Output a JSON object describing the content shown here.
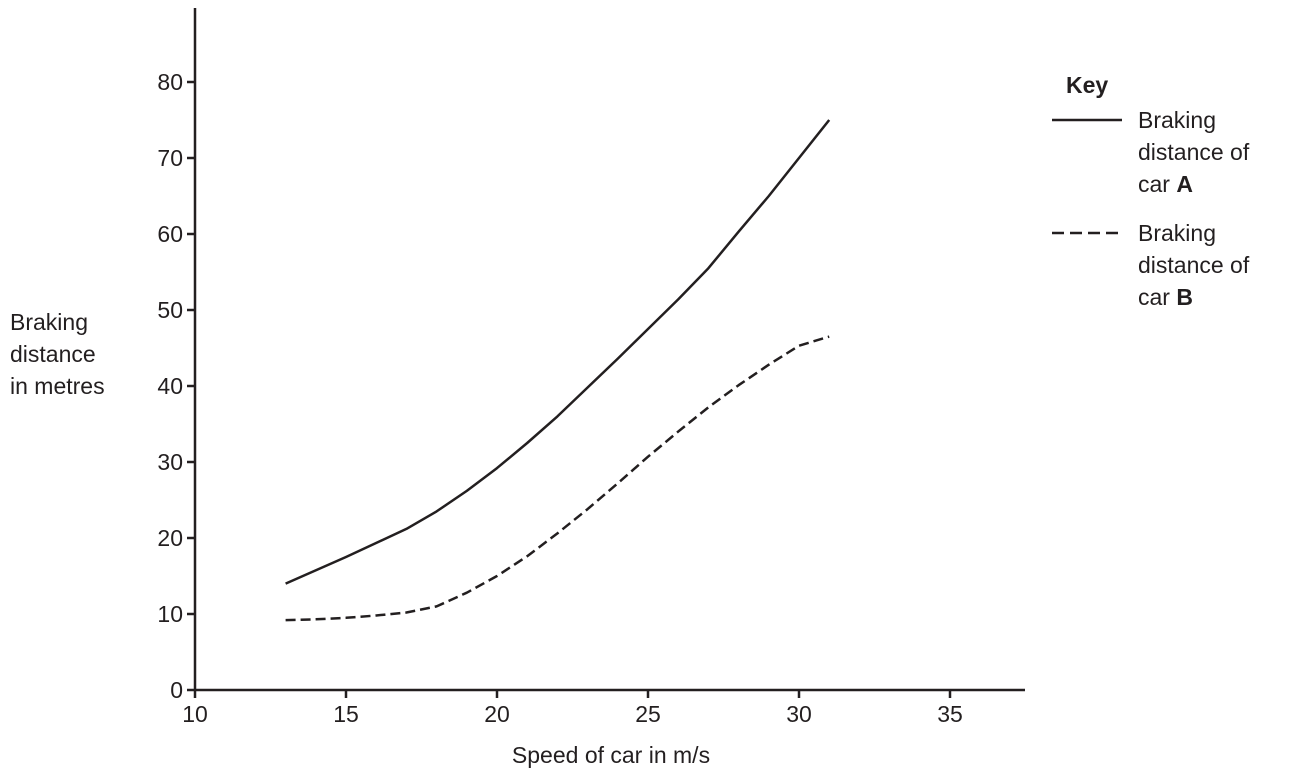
{
  "chart_data": {
    "type": "line",
    "xlabel": "Speed of car in m/s",
    "ylabel_lines": [
      "Braking",
      "distance",
      "in metres"
    ],
    "xlim": [
      10,
      37.5
    ],
    "ylim": [
      0,
      90
    ],
    "xticks": [
      10,
      15,
      20,
      25,
      30,
      35
    ],
    "yticks": [
      0,
      10,
      20,
      30,
      40,
      50,
      60,
      70,
      80
    ],
    "xtick_labels": [
      "10",
      "15",
      "20",
      "25",
      "30",
      "35"
    ],
    "ytick_labels": [
      "0",
      "10",
      "20",
      "30",
      "40",
      "50",
      "60",
      "70",
      "80"
    ],
    "grid": false,
    "legend_position": "right",
    "legend": {
      "title": "Key",
      "entries": [
        {
          "lines": [
            "Braking",
            "distance of",
            "car "
          ],
          "bold": "A",
          "style": "solid"
        },
        {
          "lines": [
            "Braking",
            "distance of",
            "car "
          ],
          "bold": "B",
          "style": "dashed"
        }
      ]
    },
    "series": [
      {
        "style": "solid",
        "points": [
          [
            13,
            14
          ],
          [
            15,
            17.5
          ],
          [
            17,
            21.2
          ],
          [
            18,
            23.5
          ],
          [
            19,
            26.2
          ],
          [
            20,
            29.2
          ],
          [
            21,
            32.5
          ],
          [
            22,
            36
          ],
          [
            23,
            39.8
          ],
          [
            24,
            43.6
          ],
          [
            25,
            47.5
          ],
          [
            26,
            51.4
          ],
          [
            27,
            55.5
          ],
          [
            28,
            60.3
          ],
          [
            29,
            65
          ],
          [
            30,
            70
          ],
          [
            31,
            75
          ]
        ]
      },
      {
        "style": "dashed",
        "points": [
          [
            13,
            9.2
          ],
          [
            14,
            9.3
          ],
          [
            15,
            9.5
          ],
          [
            16,
            9.8
          ],
          [
            17,
            10.2
          ],
          [
            18,
            11
          ],
          [
            19,
            12.8
          ],
          [
            20,
            15
          ],
          [
            21,
            17.6
          ],
          [
            22,
            20.6
          ],
          [
            23,
            23.8
          ],
          [
            24,
            27.2
          ],
          [
            25,
            30.7
          ],
          [
            26,
            34
          ],
          [
            27,
            37.2
          ],
          [
            28,
            40.1
          ],
          [
            29,
            42.8
          ],
          [
            30,
            45.3
          ],
          [
            31,
            46.5
          ]
        ]
      }
    ]
  }
}
